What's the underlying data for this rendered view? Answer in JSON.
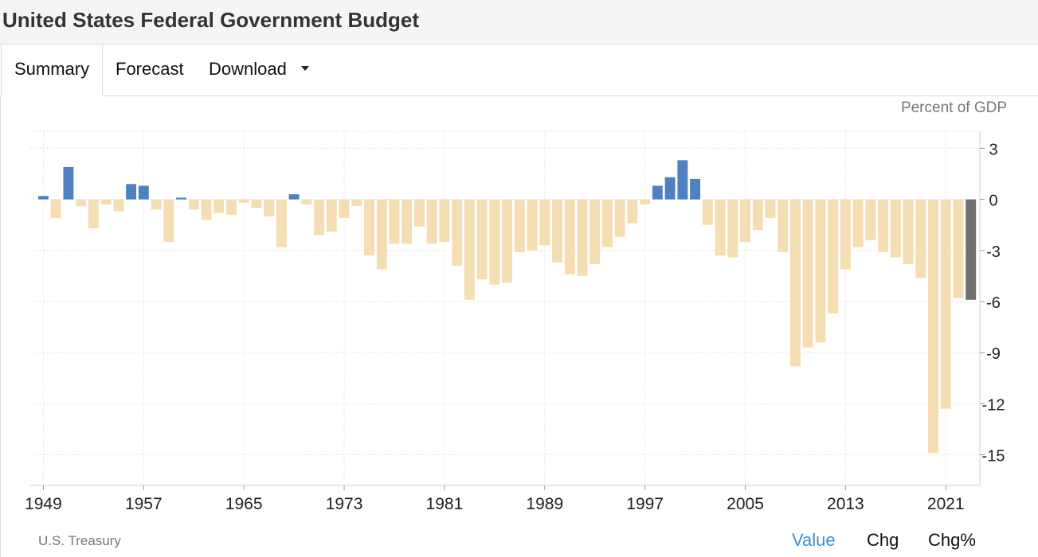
{
  "header": {
    "title": "United States Federal Government Budget"
  },
  "tabs": [
    {
      "label": "Summary",
      "active": true
    },
    {
      "label": "Forecast",
      "active": false
    },
    {
      "label": "Download",
      "active": false,
      "dropdown": true
    }
  ],
  "source": "U.S. Treasury",
  "modes": [
    {
      "label": "Value",
      "active": true
    },
    {
      "label": "Chg",
      "active": false
    },
    {
      "label": "Chg%",
      "active": false
    }
  ],
  "colors": {
    "positive": "#4f81c1",
    "negative": "#f5deb3",
    "latest": "#707070",
    "active_mode": "#3d8fd9"
  },
  "chart_data": {
    "type": "bar",
    "unit_label": "Percent of GDP",
    "x_ticks": [
      "1949",
      "1957",
      "1965",
      "1973",
      "1981",
      "1989",
      "1997",
      "2005",
      "2013",
      "2021"
    ],
    "y_ticks": [
      3,
      0,
      -3,
      -6,
      -9,
      -12,
      -15
    ],
    "ylim": [
      -16.8,
      4
    ],
    "grid": true,
    "last_bar_highlighted": true,
    "x": [
      1949,
      1950,
      1951,
      1952,
      1953,
      1954,
      1955,
      1956,
      1957,
      1958,
      1959,
      1960,
      1961,
      1962,
      1963,
      1964,
      1965,
      1966,
      1967,
      1968,
      1969,
      1970,
      1971,
      1972,
      1973,
      1974,
      1975,
      1976,
      1977,
      1978,
      1979,
      1980,
      1981,
      1982,
      1983,
      1984,
      1985,
      1986,
      1987,
      1988,
      1989,
      1990,
      1991,
      1992,
      1993,
      1994,
      1995,
      1996,
      1997,
      1998,
      1999,
      2000,
      2001,
      2002,
      2003,
      2004,
      2005,
      2006,
      2007,
      2008,
      2009,
      2010,
      2011,
      2012,
      2013,
      2014,
      2015,
      2016,
      2017,
      2018,
      2019,
      2020,
      2021,
      2022,
      2023
    ],
    "values": [
      0.2,
      -1.1,
      1.9,
      -0.4,
      -1.7,
      -0.3,
      -0.7,
      0.9,
      0.8,
      -0.6,
      -2.5,
      0.1,
      -0.6,
      -1.2,
      -0.8,
      -0.9,
      -0.2,
      -0.5,
      -1.0,
      -2.8,
      0.3,
      -0.3,
      -2.1,
      -1.9,
      -1.1,
      -0.4,
      -3.3,
      -4.1,
      -2.6,
      -2.6,
      -1.6,
      -2.6,
      -2.5,
      -3.9,
      -5.9,
      -4.7,
      -5.0,
      -4.9,
      -3.1,
      -3.0,
      -2.7,
      -3.7,
      -4.4,
      -4.5,
      -3.8,
      -2.8,
      -2.2,
      -1.4,
      -0.3,
      0.8,
      1.3,
      2.3,
      1.2,
      -1.5,
      -3.3,
      -3.4,
      -2.5,
      -1.8,
      -1.1,
      -3.1,
      -9.8,
      -8.7,
      -8.4,
      -6.7,
      -4.1,
      -2.8,
      -2.4,
      -3.1,
      -3.4,
      -3.8,
      -4.6,
      -14.9,
      -12.3,
      -5.8,
      -5.9
    ]
  }
}
